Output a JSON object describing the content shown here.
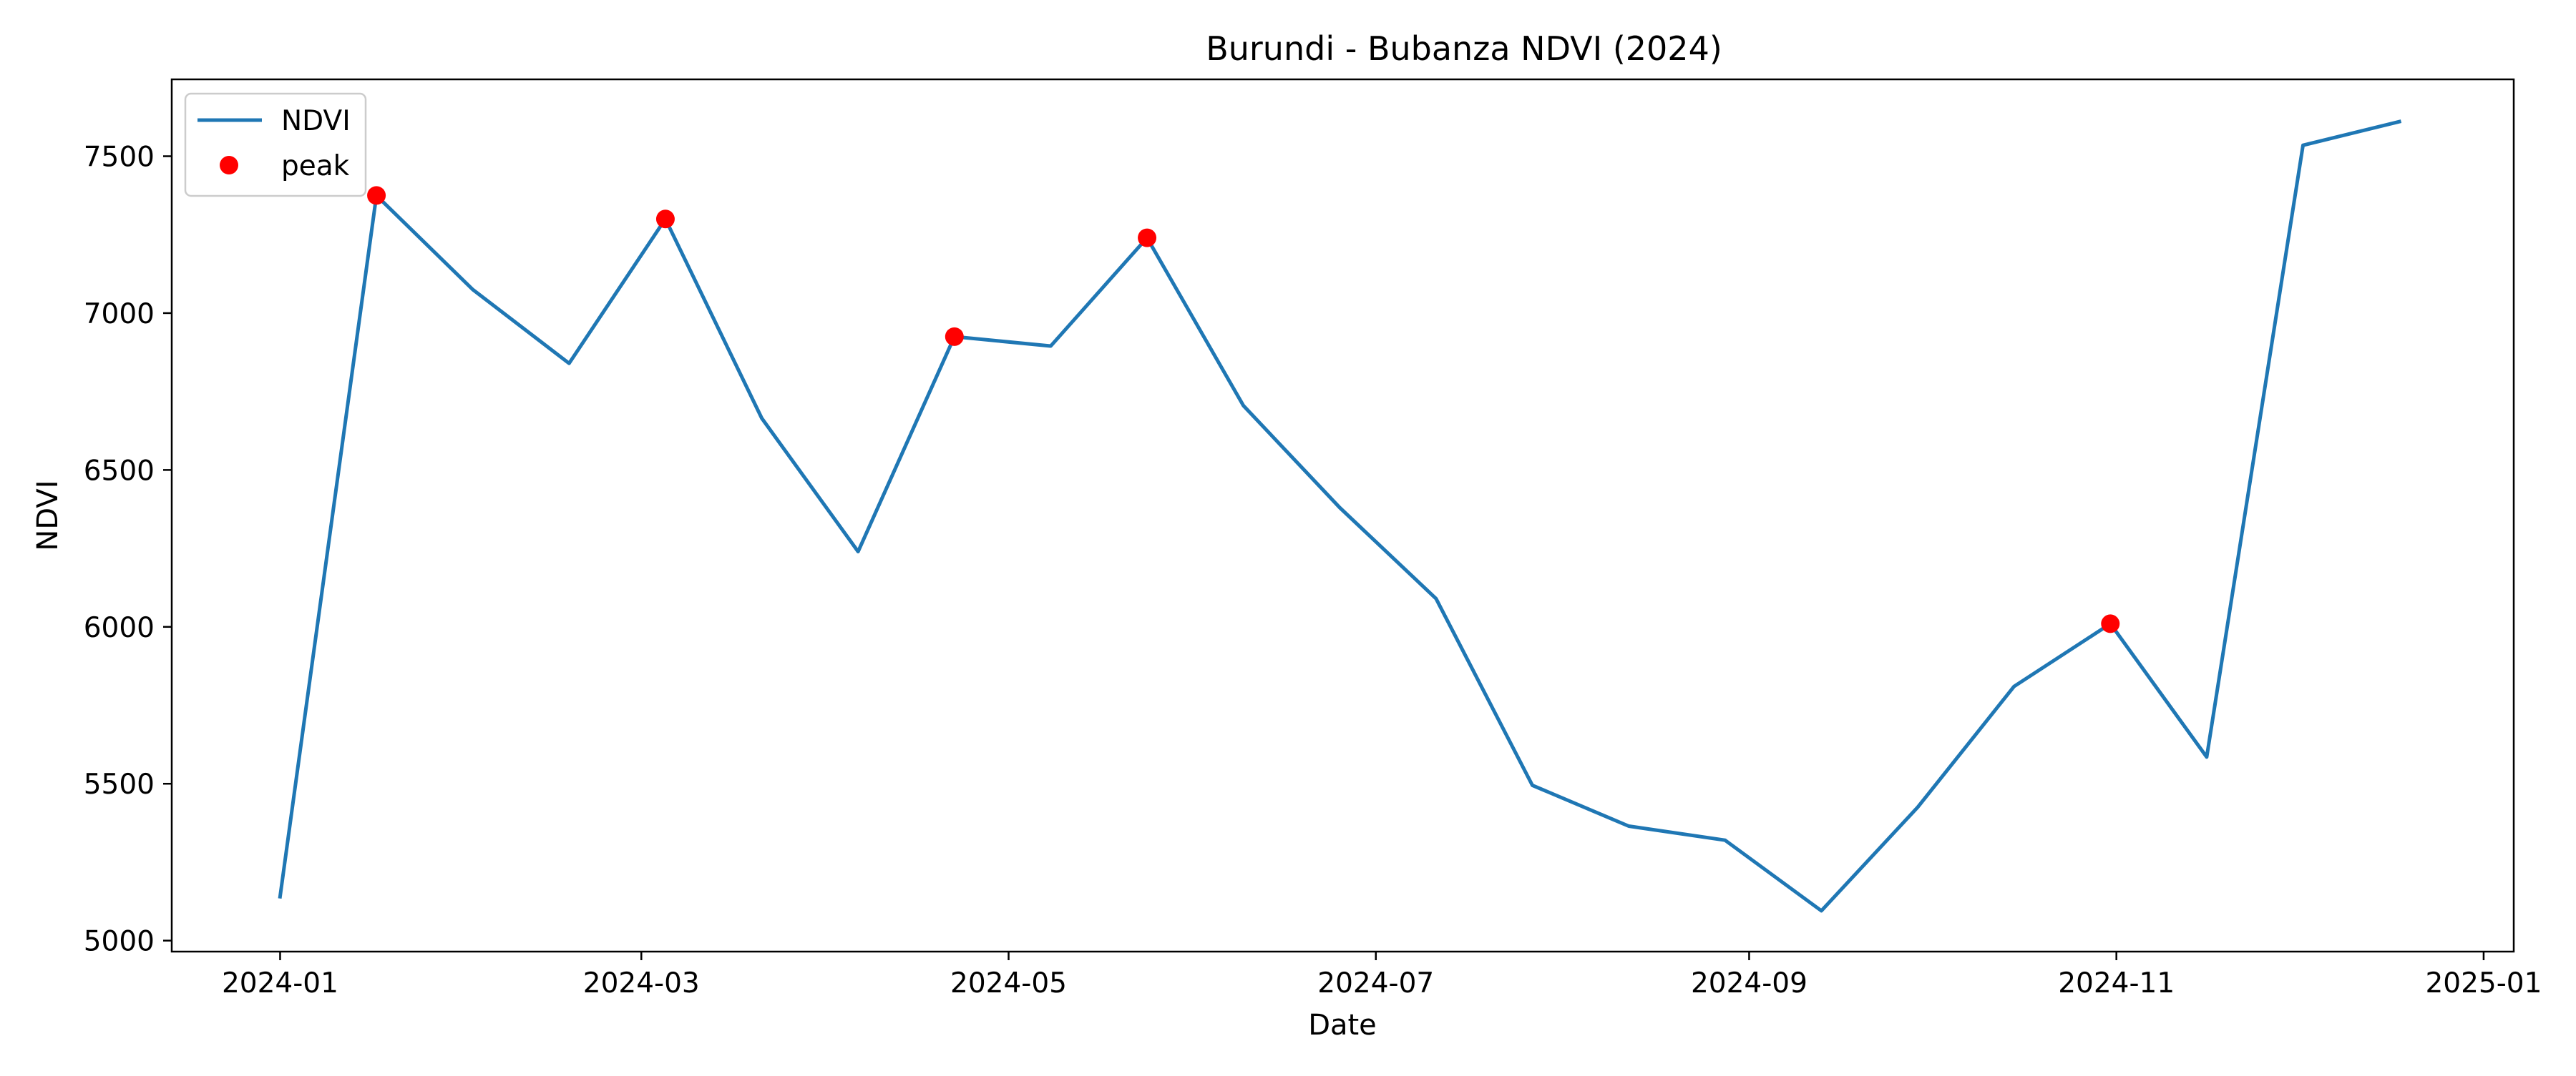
{
  "chart_data": {
    "type": "line",
    "title": "Burundi - Bubanza NDVI (2024)",
    "xlabel": "Date",
    "ylabel": "NDVI",
    "xlim": [
      "2023-12-14",
      "2025-01-06"
    ],
    "ylim": [
      4965,
      7745
    ],
    "x_ticks": [
      "2024-01",
      "2024-03",
      "2024-05",
      "2024-07",
      "2024-09",
      "2024-11",
      "2025-01"
    ],
    "y_ticks": [
      5000,
      5500,
      6000,
      6500,
      7000,
      7500
    ],
    "legend": {
      "position": "top-left",
      "entries": [
        "NDVI",
        "peak"
      ]
    },
    "grid": false,
    "series": [
      {
        "name": "NDVI",
        "type": "line",
        "color": "#1f77b4",
        "x": [
          "2024-01-01",
          "2024-01-17",
          "2024-02-02",
          "2024-02-18",
          "2024-03-05",
          "2024-03-21",
          "2024-04-06",
          "2024-04-22",
          "2024-05-08",
          "2024-05-24",
          "2024-06-09",
          "2024-06-25",
          "2024-07-11",
          "2024-07-27",
          "2024-08-12",
          "2024-08-28",
          "2024-09-13",
          "2024-09-29",
          "2024-10-15",
          "2024-10-31",
          "2024-11-16",
          "2024-12-02",
          "2024-12-18"
        ],
        "y": [
          5140,
          7375,
          7075,
          6840,
          7300,
          6665,
          6240,
          6925,
          6895,
          7240,
          6705,
          6380,
          6090,
          5495,
          5365,
          5320,
          5095,
          5425,
          5810,
          6010,
          5585,
          7535,
          7610
        ]
      },
      {
        "name": "peak",
        "type": "scatter",
        "color": "#ff0000",
        "x": [
          "2024-01-17",
          "2024-03-05",
          "2024-04-22",
          "2024-05-24",
          "2024-10-31"
        ],
        "y": [
          7375,
          7300,
          6925,
          7240,
          6010
        ]
      }
    ]
  }
}
